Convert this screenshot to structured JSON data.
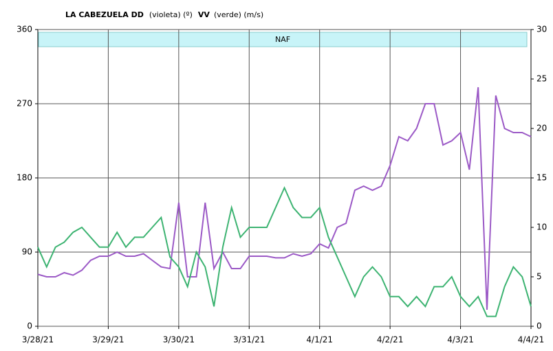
{
  "chart_data": {
    "type": "line",
    "title_parts": [
      "LA CABEZUELA DD",
      "(violeta) (º)",
      "VV",
      "(verde) (m/s)"
    ],
    "band_label": "NAF",
    "categories": [
      "3/28/21",
      null,
      null,
      null,
      null,
      null,
      null,
      null,
      "3/29/21",
      null,
      null,
      null,
      null,
      null,
      null,
      null,
      "3/30/21",
      null,
      null,
      null,
      null,
      null,
      null,
      null,
      "3/31/21",
      null,
      null,
      null,
      null,
      null,
      null,
      null,
      "4/1/21",
      null,
      null,
      null,
      null,
      null,
      null,
      null,
      "4/2/21",
      null,
      null,
      null,
      null,
      null,
      null,
      null,
      "4/3/21",
      null,
      null,
      null,
      null,
      null,
      null,
      null,
      "4/4/21"
    ],
    "series": [
      {
        "name": "DD",
        "color": "#9b59c6",
        "values": [
          63,
          60,
          60,
          65,
          62,
          68,
          80,
          85,
          85,
          90,
          85,
          85,
          88,
          80,
          72,
          70,
          150,
          60,
          60,
          150,
          70,
          90,
          70,
          70,
          85,
          85,
          85,
          83,
          83,
          88,
          85,
          88,
          100,
          95,
          120,
          125,
          165,
          170,
          165,
          170,
          195,
          230,
          225,
          240,
          270,
          270,
          220,
          225,
          235,
          190,
          290,
          20,
          280,
          240,
          235,
          235,
          230
        ]
      },
      {
        "name": "VV",
        "color": "#3cb371",
        "axis": "y2",
        "values": [
          8,
          6,
          8,
          8.5,
          9.5,
          10,
          9,
          8,
          8,
          9.5,
          8,
          9,
          9,
          10,
          11,
          7,
          6,
          4,
          7.5,
          6,
          2,
          8,
          12,
          9,
          10,
          10,
          10,
          12,
          14,
          12,
          11,
          11,
          12,
          9,
          7,
          5,
          3,
          5,
          6,
          5,
          3,
          3,
          2,
          3,
          2,
          4,
          4,
          5,
          3,
          2,
          3,
          1,
          1,
          4,
          6,
          5,
          2
        ]
      }
    ],
    "ylim": [
      0,
      360
    ],
    "yticks": [
      0,
      90,
      180,
      270,
      360
    ],
    "y2lim": [
      0,
      30
    ],
    "y2ticks": [
      0,
      5,
      10,
      15,
      20,
      25,
      30
    ],
    "grid": true
  }
}
